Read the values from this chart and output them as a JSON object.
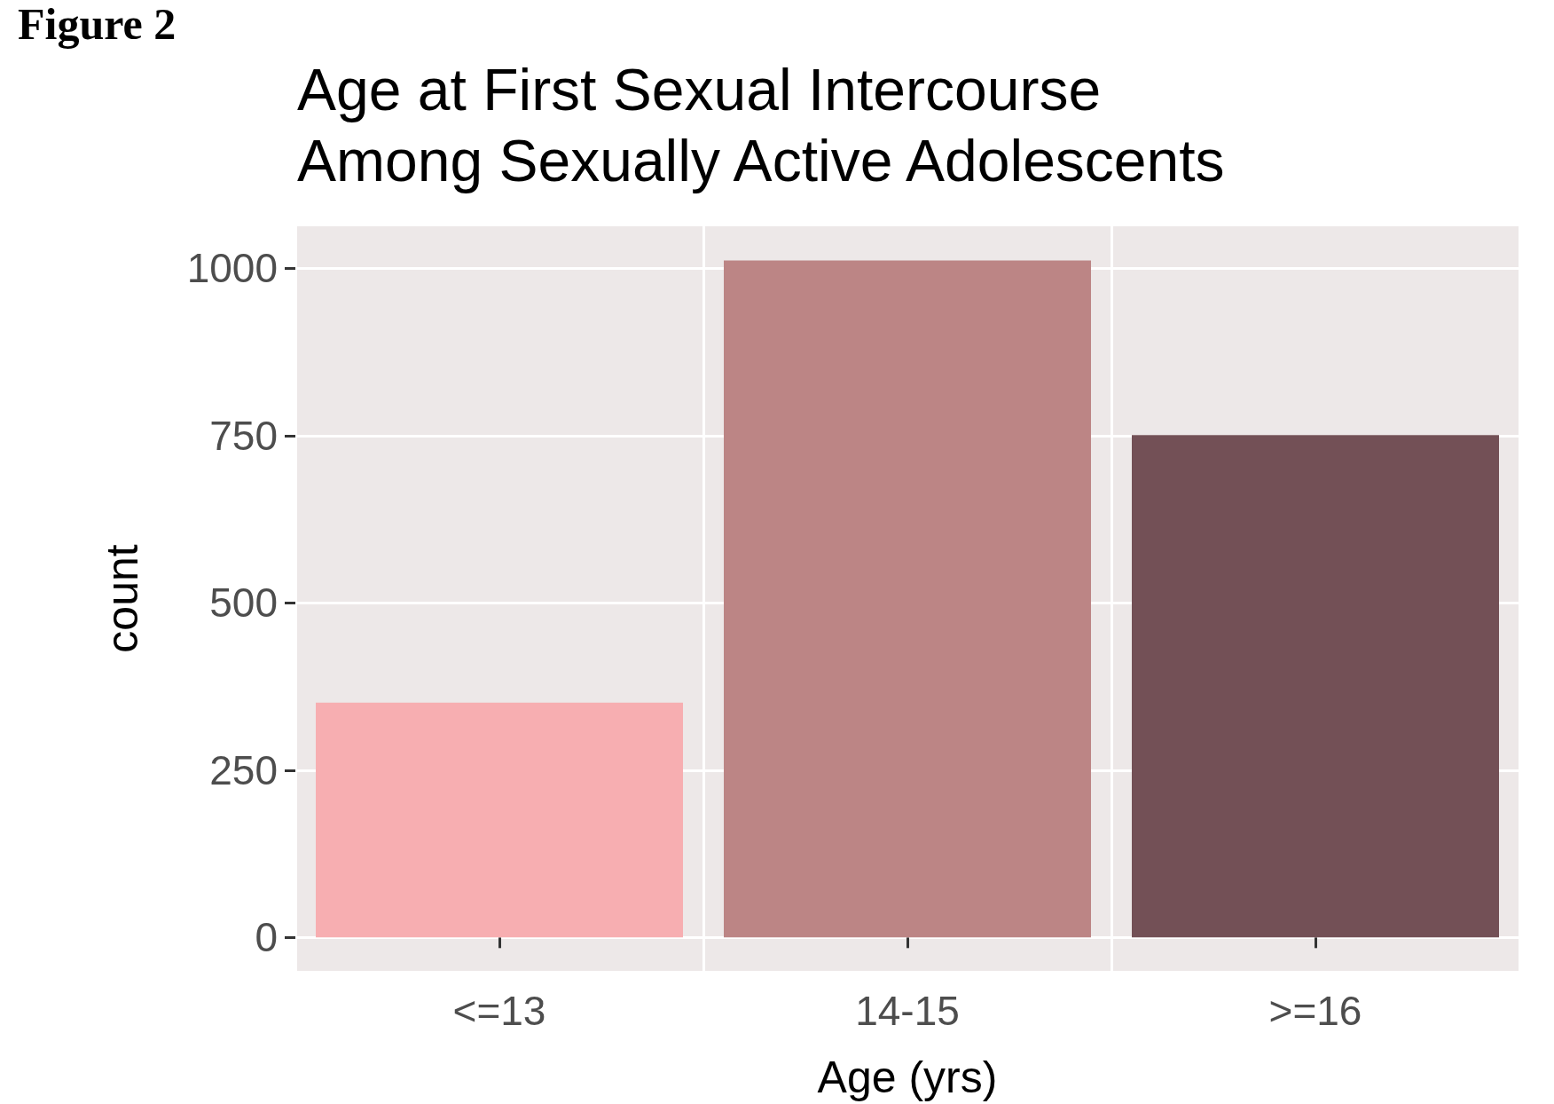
{
  "chart_data": {
    "type": "bar",
    "title": "Age at First Sexual Intercourse\nAmong Sexually Active Adolescents",
    "annotations": [
      "Figure 2"
    ],
    "xlabel": "Age (yrs)",
    "ylabel": "count",
    "categories": [
      "<=13",
      "14-15",
      ">=16"
    ],
    "values": [
      351,
      1012,
      751
    ],
    "colors": [
      "#f7aeb1",
      "#bc8585",
      "#735056"
    ],
    "ylim": [
      -50,
      1063
    ],
    "yticks": [
      0,
      250,
      500,
      750,
      1000
    ],
    "grid": true
  }
}
